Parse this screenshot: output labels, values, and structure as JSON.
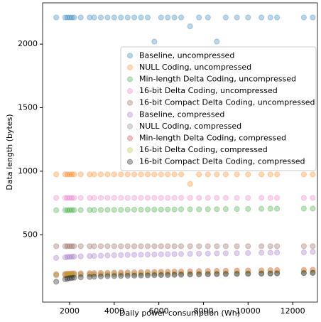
{
  "chart_data": {
    "type": "scatter",
    "xlabel": "Daily power consumption (Wh)",
    "ylabel": "Data length (bytes)",
    "xlim": [
      790,
      13110
    ],
    "ylim": [
      -30,
      2325
    ],
    "xticks": [
      2000,
      4000,
      6000,
      8000,
      10000,
      12000
    ],
    "yticks": [
      500,
      1000,
      1500,
      2000
    ],
    "legend": "upper right",
    "alpha": 0.3,
    "x": [
      1400,
      1800,
      1900,
      2000,
      2100,
      2200,
      2500,
      2900,
      3100,
      3400,
      3700,
      4000,
      4300,
      4600,
      4900,
      5200,
      5500,
      5800,
      6100,
      6400,
      6700,
      7000,
      7400,
      7800,
      8200,
      8600,
      9000,
      9500,
      10000,
      10600,
      11000,
      11300,
      12500,
      12900
    ],
    "series": [
      {
        "name": "Baseline, uncompressed",
        "color": "#1f77b4",
        "values": [
          2210,
          2210,
          2210,
          2210,
          2210,
          2210,
          2210,
          2210,
          2210,
          2210,
          2210,
          2210,
          2210,
          2210,
          2210,
          2210,
          2210,
          2020,
          2210,
          2210,
          2210,
          2210,
          2140,
          2210,
          2210,
          2020,
          2210,
          2210,
          2210,
          2210,
          2210,
          2210,
          2210,
          2210
        ]
      },
      {
        "name": "NULL Coding, uncompressed",
        "color": "#ff7f0e",
        "values": [
          975,
          975,
          975,
          975,
          975,
          975,
          975,
          975,
          975,
          975,
          975,
          975,
          975,
          975,
          975,
          975,
          975,
          975,
          975,
          975,
          975,
          975,
          900,
          975,
          975,
          975,
          975,
          975,
          975,
          975,
          975,
          975,
          975,
          975
        ]
      },
      {
        "name": "Min-length Delta Coding, uncompressed",
        "color": "#2ca02c",
        "values": [
          693,
          693,
          693,
          694,
          694,
          694,
          694,
          695,
          695,
          695,
          696,
          696,
          696,
          697,
          697,
          697,
          698,
          698,
          698,
          699,
          699,
          700,
          700,
          700,
          701,
          701,
          702,
          702,
          703,
          704,
          705,
          705,
          706,
          706
        ]
      },
      {
        "name": "16-bit Delta Coding, uncompressed",
        "color": "#e377c2",
        "values": [
          790,
          790,
          790,
          790,
          790,
          790,
          790,
          790,
          790,
          790,
          790,
          790,
          790,
          790,
          790,
          790,
          790,
          790,
          790,
          790,
          790,
          790,
          790,
          790,
          790,
          790,
          790,
          790,
          790,
          790,
          790,
          790,
          790,
          790
        ]
      },
      {
        "name": "16-bit Compact Delta Coding, uncompressed",
        "color": "#8c564b",
        "values": [
          410,
          410,
          410,
          410,
          410,
          410,
          410,
          410,
          410,
          410,
          410,
          410,
          410,
          410,
          410,
          410,
          410,
          410,
          410,
          410,
          410,
          410,
          410,
          410,
          410,
          410,
          410,
          410,
          410,
          410,
          410,
          410,
          410,
          410
        ]
      },
      {
        "name": "Baseline, compressed",
        "color": "#9467bd",
        "values": [
          318,
          322,
          325,
          326,
          327,
          328,
          330,
          332,
          333,
          335,
          337,
          339,
          340,
          341,
          342,
          343,
          344,
          345,
          346,
          347,
          348,
          349,
          350,
          351,
          352,
          353,
          354,
          355,
          356,
          358,
          359,
          360,
          362,
          365
        ]
      },
      {
        "name": "NULL Coding, compressed",
        "color": "#7f7f7f",
        "values": [
          180,
          182,
          183,
          183,
          184,
          184,
          185,
          186,
          186,
          187,
          187,
          188,
          188,
          189,
          189,
          190,
          190,
          191,
          191,
          192,
          192,
          193,
          193,
          194,
          194,
          195,
          196,
          196,
          197,
          198,
          198,
          199,
          200,
          200
        ]
      },
      {
        "name": "Min-length Delta Coding, compressed",
        "color": "#d62728",
        "values": [
          190,
          192,
          193,
          194,
          195,
          196,
          197,
          198,
          199,
          200,
          201,
          202,
          203,
          204,
          205,
          206,
          207,
          208,
          209,
          210,
          211,
          212,
          213,
          214,
          215,
          216,
          217,
          218,
          219,
          220,
          221,
          222,
          224,
          225
        ]
      },
      {
        "name": "16-bit Delta Coding, compressed",
        "color": "#bcbd22",
        "values": [
          185,
          187,
          188,
          189,
          190,
          190,
          191,
          192,
          193,
          194,
          195,
          196,
          197,
          198,
          198,
          199,
          200,
          201,
          202,
          203,
          203,
          204,
          205,
          206,
          207,
          208,
          209,
          210,
          211,
          212,
          213,
          214,
          215,
          215
        ]
      },
      {
        "name": "16-bit Compact Delta Coding, compressed",
        "color": "#000000",
        "values": [
          130,
          150,
          155,
          158,
          160,
          162,
          165,
          168,
          170,
          172,
          174,
          175,
          176,
          177,
          178,
          179,
          180,
          181,
          182,
          183,
          184,
          185,
          186,
          187,
          188,
          189,
          190,
          191,
          192,
          193,
          194,
          195,
          198,
          200
        ]
      }
    ]
  }
}
